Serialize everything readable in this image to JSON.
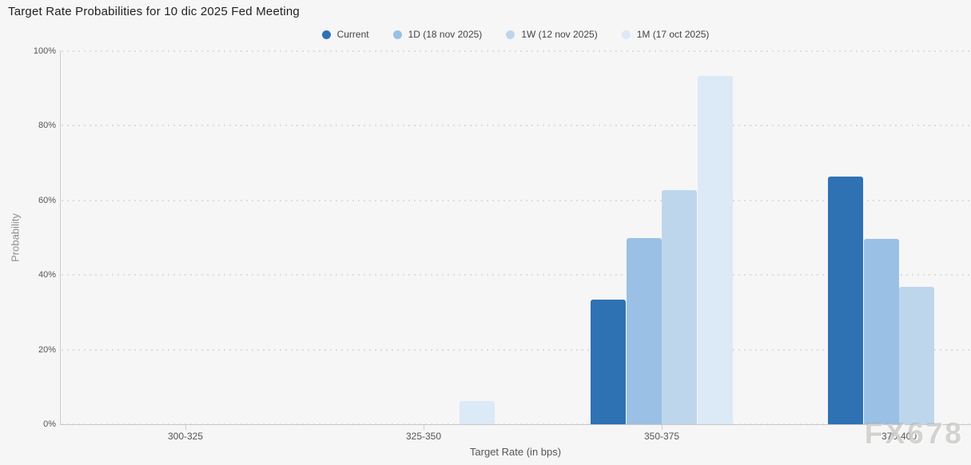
{
  "watermark": {
    "text": "FX678"
  },
  "chart_data": {
    "type": "bar",
    "title": "Target Rate Probabilities for 10 dic 2025 Fed Meeting",
    "xlabel": "Target Rate (in bps)",
    "ylabel": "Probability",
    "categories": [
      "300-325",
      "325-350",
      "350-375",
      "375-400"
    ],
    "series": [
      {
        "name": "Current",
        "color": "#2E72B4",
        "values": [
          0,
          0,
          33.4,
          66.3
        ]
      },
      {
        "name": "1D (18 nov 2025)",
        "color": "#9AC0E5",
        "values": [
          0,
          0,
          49.9,
          49.7
        ]
      },
      {
        "name": "1W (12 nov 2025)",
        "color": "#BDD6EC",
        "values": [
          0,
          0,
          62.6,
          36.8
        ]
      },
      {
        "name": "1M (17 oct 2025)",
        "color": "#DCE9F6",
        "values": [
          0,
          6.1,
          93.3,
          0
        ]
      }
    ],
    "yticks": [
      0,
      20,
      40,
      60,
      80,
      100
    ],
    "ytick_labels": [
      "0%",
      "20%",
      "40%",
      "60%",
      "80%",
      "100%"
    ],
    "ylim": [
      0,
      100
    ],
    "grid": "horizontal dotted",
    "legend_position": "top center",
    "axis_color": "#cccccc",
    "grid_color": "#dcdcdc",
    "background_color": "#f6f6f7"
  }
}
